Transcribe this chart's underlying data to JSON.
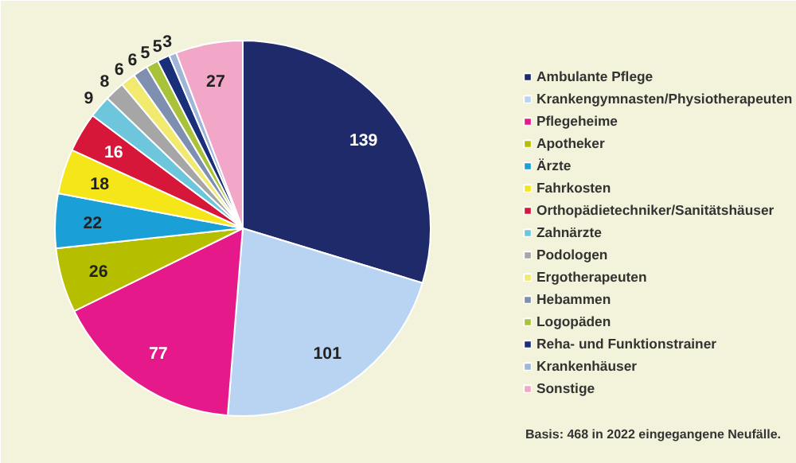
{
  "chart_data": {
    "type": "pie",
    "categories": [
      "Ambulante Pflege",
      "Krankengymnasten/Physiotherapeuten",
      "Pflegeheime",
      "Apotheker",
      "Ärzte",
      "Fahrkosten",
      "Orthopädietechniker/Sanitätshäuser",
      "Zahnärzte",
      "Podologen",
      "Ergotherapeuten",
      "Hebammen",
      "Logopäden",
      "Reha- und Funktionstrainer",
      "Krankenhäuser",
      "Sonstige"
    ],
    "values": [
      139,
      101,
      77,
      26,
      22,
      18,
      16,
      9,
      8,
      6,
      6,
      5,
      5,
      3,
      27
    ],
    "colors": [
      "#1f2a6b",
      "#b8d4f2",
      "#e6198a",
      "#b5bf00",
      "#1aa0d6",
      "#f5e61a",
      "#d6173a",
      "#6ec6dc",
      "#a6a6a6",
      "#f2ea6e",
      "#7e8fb0",
      "#a8c23a",
      "#1a2f7a",
      "#9fb6d9",
      "#f2a6c8"
    ],
    "data_labels": true,
    "legend": "right",
    "annotations": [
      "Basis: 468 in 2022 eingegangene Neufälle."
    ]
  }
}
